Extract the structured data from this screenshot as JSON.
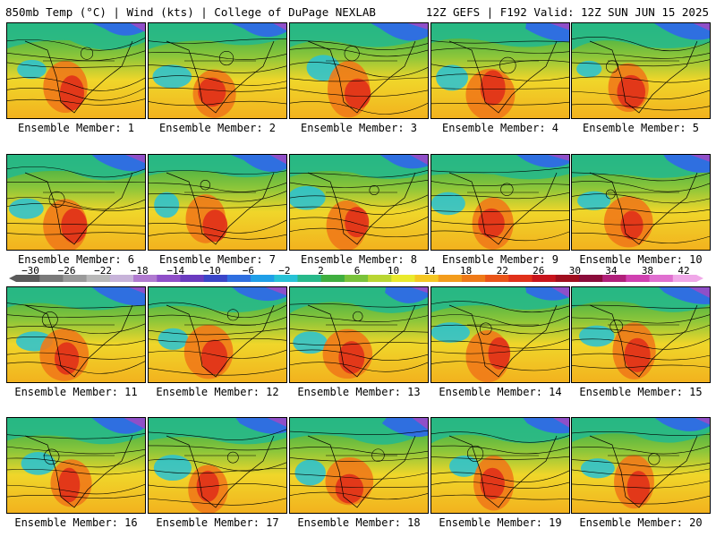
{
  "header": {
    "left": "850mb Temp (°C) | Wind (kts) | College of DuPage NEXLAB",
    "right": "12Z GEFS | F192 Valid: 12Z SUN JUN 15 2025"
  },
  "members": [
    {
      "label": "Ensemble Member: 1"
    },
    {
      "label": "Ensemble Member: 2"
    },
    {
      "label": "Ensemble Member: 3"
    },
    {
      "label": "Ensemble Member: 4"
    },
    {
      "label": "Ensemble Member: 5"
    },
    {
      "label": "Ensemble Member: 6"
    },
    {
      "label": "Ensemble Member: 7"
    },
    {
      "label": "Ensemble Member: 8"
    },
    {
      "label": "Ensemble Member: 9"
    },
    {
      "label": "Ensemble Member: 10"
    },
    {
      "label": "Ensemble Member: 11"
    },
    {
      "label": "Ensemble Member: 12"
    },
    {
      "label": "Ensemble Member: 13"
    },
    {
      "label": "Ensemble Member: 14"
    },
    {
      "label": "Ensemble Member: 15"
    },
    {
      "label": "Ensemble Member: 16"
    },
    {
      "label": "Ensemble Member: 17"
    },
    {
      "label": "Ensemble Member: 18"
    },
    {
      "label": "Ensemble Member: 19"
    },
    {
      "label": "Ensemble Member: 20"
    }
  ],
  "colorbar": {
    "labels": [
      "−30",
      "−26",
      "−22",
      "−18",
      "−14",
      "−10",
      "−6",
      "−2",
      "2",
      "6",
      "10",
      "14",
      "18",
      "22",
      "26",
      "30",
      "34",
      "38",
      "42"
    ],
    "colors": [
      "#5a5a5a",
      "#7a7a7a",
      "#9a9a9a",
      "#b8b8b8",
      "#c7b3d9",
      "#b07ad0",
      "#8f4fc8",
      "#6a3bbf",
      "#3a45c8",
      "#2f6fe0",
      "#1f9fe8",
      "#27c2d6",
      "#27b98a",
      "#3fae3f",
      "#79c23a",
      "#b9d632",
      "#eaea2c",
      "#f5c722",
      "#f39c1c",
      "#ef7a18",
      "#ea5418",
      "#e0301a",
      "#c8141c",
      "#a00e1e",
      "#8a0c3a",
      "#b0207a",
      "#d040b0",
      "#e070d0",
      "#f0a8e8"
    ]
  }
}
